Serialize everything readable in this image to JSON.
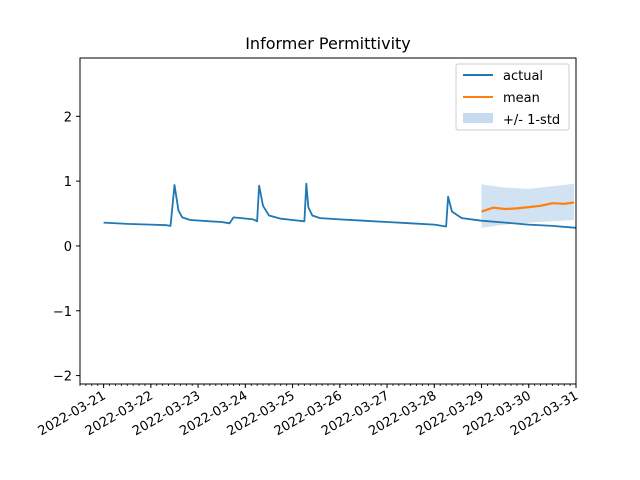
{
  "chart_data": {
    "type": "line",
    "title": "Informer Permittivity",
    "xlabel": "",
    "ylabel": "",
    "ylim": [
      -2.13,
      2.9
    ],
    "xlim": [
      "2022-03-20 12:00",
      "2022-03-31 00:00"
    ],
    "yticks": [
      -2,
      -1,
      0,
      1,
      2
    ],
    "yticklabels": [
      "−2",
      "−1",
      "0",
      "1",
      "2"
    ],
    "xticks": [
      "2022-03-21",
      "2022-03-22",
      "2022-03-23",
      "2022-03-24",
      "2022-03-25",
      "2022-03-26",
      "2022-03-27",
      "2022-03-28",
      "2022-03-29",
      "2022-03-30",
      "2022-03-31"
    ],
    "xticklabels": [
      "2022-03-21",
      "2022-03-22",
      "2022-03-23",
      "2022-03-24",
      "2022-03-25",
      "2022-03-26",
      "2022-03-27",
      "2022-03-28",
      "2022-03-29",
      "2022-03-30",
      "2022-03-31"
    ],
    "grid": false,
    "legend_position": "top-right",
    "series": [
      {
        "name": "actual",
        "color": "#1f77b4",
        "x": [
          "2022-03-21 00:00",
          "2022-03-21 12:00",
          "2022-03-22 00:00",
          "2022-03-22 08:00",
          "2022-03-22 10:00",
          "2022-03-22 11:00",
          "2022-03-22 12:00",
          "2022-03-22 14:00",
          "2022-03-22 16:00",
          "2022-03-22 20:00",
          "2022-03-23 06:00",
          "2022-03-23 12:00",
          "2022-03-23 16:00",
          "2022-03-23 18:00",
          "2022-03-23 22:00",
          "2022-03-24 04:00",
          "2022-03-24 06:00",
          "2022-03-24 07:00",
          "2022-03-24 09:00",
          "2022-03-24 12:00",
          "2022-03-24 18:00",
          "2022-03-25 00:00",
          "2022-03-25 06:00",
          "2022-03-25 07:00",
          "2022-03-25 08:00",
          "2022-03-25 10:00",
          "2022-03-25 14:00",
          "2022-03-26 00:00",
          "2022-03-26 12:00",
          "2022-03-27 00:00",
          "2022-03-27 12:00",
          "2022-03-28 00:00",
          "2022-03-28 06:00",
          "2022-03-28 07:00",
          "2022-03-28 09:00",
          "2022-03-28 14:00",
          "2022-03-29 00:00",
          "2022-03-29 12:00",
          "2022-03-30 00:00",
          "2022-03-30 12:00",
          "2022-03-31 00:00"
        ],
        "y": [
          0.36,
          0.34,
          0.33,
          0.32,
          0.31,
          0.62,
          0.94,
          0.55,
          0.44,
          0.4,
          0.38,
          0.37,
          0.35,
          0.44,
          0.43,
          0.41,
          0.38,
          0.93,
          0.62,
          0.47,
          0.42,
          0.4,
          0.38,
          0.96,
          0.6,
          0.47,
          0.43,
          0.41,
          0.39,
          0.37,
          0.35,
          0.33,
          0.3,
          0.76,
          0.53,
          0.43,
          0.39,
          0.36,
          0.33,
          0.31,
          0.28
        ]
      },
      {
        "name": "mean",
        "color": "#ff7f0e",
        "x": [
          "2022-03-29 00:00",
          "2022-03-29 06:00",
          "2022-03-29 12:00",
          "2022-03-29 18:00",
          "2022-03-30 00:00",
          "2022-03-30 06:00",
          "2022-03-30 12:00",
          "2022-03-30 18:00",
          "2022-03-30 23:00"
        ],
        "y": [
          0.53,
          0.59,
          0.57,
          0.58,
          0.6,
          0.62,
          0.66,
          0.65,
          0.67
        ]
      }
    ],
    "band": {
      "name": "+/- 1-std",
      "color": "#c6dbef",
      "x": [
        "2022-03-29 00:00",
        "2022-03-29 12:00",
        "2022-03-30 00:00",
        "2022-03-30 12:00",
        "2022-03-30 23:00"
      ],
      "lower": [
        0.28,
        0.33,
        0.36,
        0.38,
        0.4
      ],
      "upper": [
        0.95,
        0.9,
        0.88,
        0.92,
        0.96
      ]
    }
  }
}
